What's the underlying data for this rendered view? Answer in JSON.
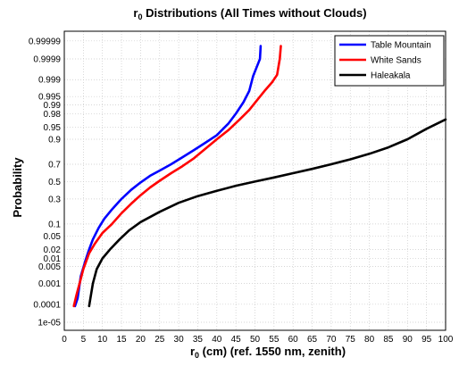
{
  "chart_data": {
    "type": "line",
    "title": {
      "base": "r",
      "subscript": "0",
      "rest": " Distributions (All Times without Clouds)"
    },
    "xlabel": {
      "base": "r",
      "subscript": "0",
      "rest": " (cm) (ref. 1550 nm, zenith)"
    },
    "ylabel": "Probability",
    "xlim": [
      0,
      100
    ],
    "x_ticks": [
      "0",
      "5",
      "10",
      "15",
      "20",
      "25",
      "30",
      "35",
      "40",
      "45",
      "50",
      "55",
      "60",
      "65",
      "70",
      "75",
      "80",
      "85",
      "90",
      "95",
      "100"
    ],
    "y_scale": "normal-probability",
    "y_ticks": [
      "1e-05",
      "0.0001",
      "0.001",
      "0.005",
      "0.01",
      "0.02",
      "0.05",
      "0.1",
      "0.3",
      "0.5",
      "0.7",
      "0.9",
      "0.95",
      "0.98",
      "0.99",
      "0.995",
      "0.999",
      "0.9999",
      "0.99999"
    ],
    "grid": true,
    "legend_position": "top-right",
    "series": [
      {
        "name": "Table Mountain",
        "color": "#0000ff",
        "x": [
          2.8,
          3.5,
          4.3,
          5.5,
          6.5,
          7.5,
          9.0,
          10.5,
          12.5,
          15.0,
          17.5,
          20.0,
          22.5,
          25.0,
          28.0,
          31.0,
          34.0,
          37.0,
          40.0,
          43.0,
          45.0,
          47.0,
          48.5,
          49.5,
          50.5,
          51.3,
          51.5
        ],
        "y": [
          8e-05,
          0.0002,
          0.002,
          0.008,
          0.02,
          0.04,
          0.08,
          0.13,
          0.2,
          0.3,
          0.4,
          0.49,
          0.57,
          0.63,
          0.7,
          0.77,
          0.83,
          0.88,
          0.92,
          0.96,
          0.98,
          0.992,
          0.997,
          0.9993,
          0.99975,
          0.9999,
          0.99998
        ]
      },
      {
        "name": "White Sands",
        "color": "#ff0000",
        "x": [
          2.5,
          3.2,
          4.0,
          5.0,
          6.5,
          8.0,
          10.0,
          12.5,
          15.0,
          17.5,
          20.0,
          22.5,
          25.0,
          28.0,
          31.0,
          34.0,
          37.0,
          40.0,
          43.0,
          46.0,
          48.5,
          50.5,
          52.5,
          54.5,
          55.8,
          56.5,
          56.8
        ],
        "y": [
          8e-05,
          0.0003,
          0.001,
          0.004,
          0.015,
          0.03,
          0.06,
          0.1,
          0.17,
          0.25,
          0.34,
          0.43,
          0.51,
          0.6,
          0.68,
          0.76,
          0.84,
          0.9,
          0.94,
          0.97,
          0.985,
          0.993,
          0.997,
          0.9987,
          0.9994,
          0.9999,
          0.99998
        ]
      },
      {
        "name": "Haleakala",
        "color": "#000000",
        "x": [
          6.5,
          7.0,
          7.5,
          8.5,
          10.0,
          12.0,
          14.5,
          17.0,
          20.0,
          25.0,
          30.0,
          35.0,
          40.0,
          45.0,
          50.0,
          55.0,
          60.0,
          65.0,
          70.0,
          75.0,
          80.0,
          85.0,
          90.0,
          95.0,
          100.0
        ],
        "y": [
          8e-05,
          0.0003,
          0.001,
          0.004,
          0.01,
          0.02,
          0.04,
          0.07,
          0.11,
          0.18,
          0.26,
          0.33,
          0.39,
          0.45,
          0.5,
          0.55,
          0.6,
          0.65,
          0.7,
          0.75,
          0.8,
          0.85,
          0.9,
          0.945,
          0.97
        ]
      }
    ]
  }
}
